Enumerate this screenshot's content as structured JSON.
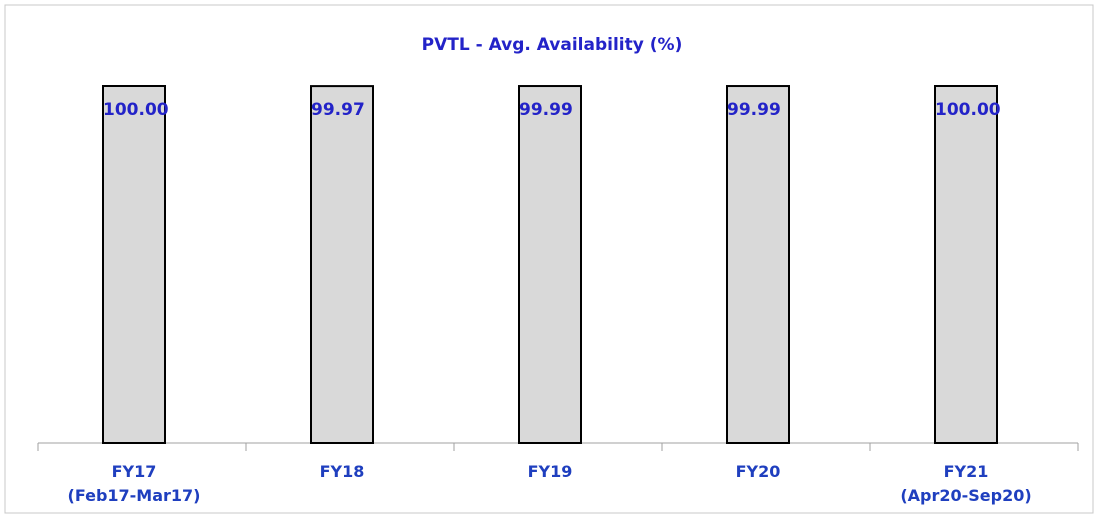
{
  "chart_data": {
    "type": "bar",
    "title": "PVTL - Avg. Availability (%)",
    "categories": [
      "FY17\n(Feb17-Mar17)",
      "FY18",
      "FY19",
      "FY20",
      "FY21\n(Apr20-Sep20)"
    ],
    "values": [
      100,
      99.97,
      99.99,
      99.99,
      100
    ],
    "value_labels": [
      "100.00",
      "99.97",
      "99.99",
      "99.99",
      "100.00"
    ],
    "color": "#d9d9d9",
    "ylim": [
      0,
      100
    ]
  }
}
